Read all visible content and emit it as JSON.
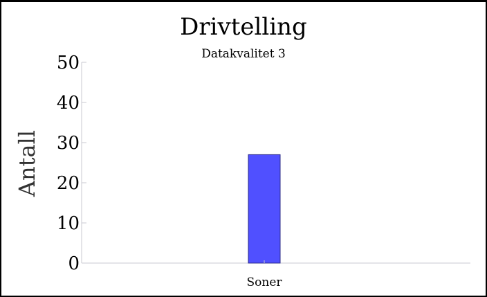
{
  "chart_data": {
    "type": "bar",
    "title": "Drivtelling",
    "subtitle": "Datakvalitet 3",
    "xlabel": "",
    "ylabel": "Antall",
    "categories": [
      "Soner"
    ],
    "values": [
      27
    ],
    "ylim": [
      0,
      50
    ],
    "yticks": [
      0,
      10,
      20,
      30,
      40,
      50
    ],
    "grid": false,
    "colors": {
      "bar": "#5050ff",
      "bar_stroke": "#2a2a8a",
      "axis": "#c8c8d0"
    }
  }
}
